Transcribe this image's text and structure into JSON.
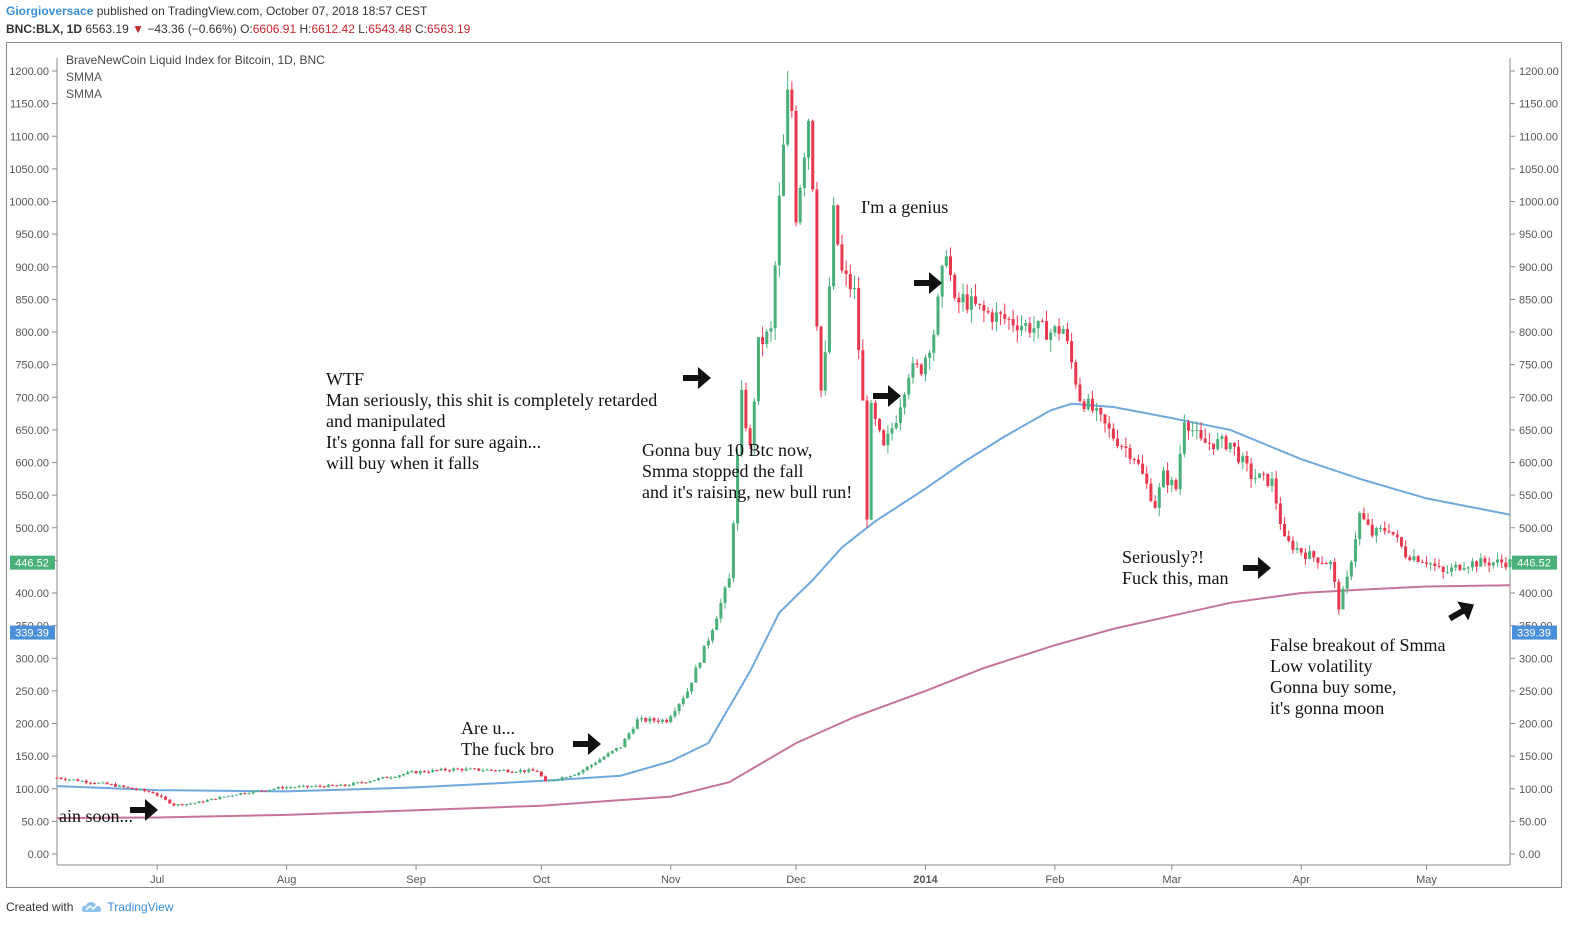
{
  "header": {
    "author": "Giorgioversace",
    "published": "published on TradingView.com, October 07, 2018 18:57 CEST",
    "symbol": "BNC:BLX, 1D",
    "last": "6563.19",
    "change_arrow": "▼",
    "change": "−43.36 (−0.66%)",
    "o_label": "O:",
    "o": "6606.91",
    "h_label": "H:",
    "h": "6612.42",
    "l_label": "L:",
    "l": "6543.48",
    "c_label": "C:",
    "c": "6563.19"
  },
  "legend": {
    "title": "BraveNewCoin Liquid Index for Bitcoin, 1D, BNC",
    "ind1": "SMMA",
    "ind2": "SMMA"
  },
  "footer": {
    "created": "Created with",
    "brand": "TradingView",
    "logo_icon": "tradingview-cloud-icon"
  },
  "colors": {
    "up": "#4ab07a",
    "down": "#e8384f",
    "smma_fast": "#6fa8dc",
    "smma_slow": "#c5739a",
    "price_tag": "#4ab07a",
    "smma_tag": "#4a90d9",
    "axis_text": "#555555"
  },
  "chart_data": {
    "type": "candlestick",
    "title": "BraveNewCoin Liquid Index for Bitcoin, 1D, BNC",
    "ylim": [
      0,
      1200
    ],
    "y_ticks": [
      "0.00",
      "50.00",
      "100.00",
      "150.00",
      "200.00",
      "250.00",
      "300.00",
      "350.00",
      "400.00",
      "450.00",
      "500.00",
      "550.00",
      "600.00",
      "650.00",
      "700.00",
      "750.00",
      "800.00",
      "850.00",
      "900.00",
      "950.00",
      "1000.00",
      "1050.00",
      "1100.00",
      "1150.00",
      "1200.00"
    ],
    "x_ticks": [
      {
        "label": "Jul",
        "date": "2013-07-01"
      },
      {
        "label": "Aug",
        "date": "2013-08-01"
      },
      {
        "label": "Sep",
        "date": "2013-09-01"
      },
      {
        "label": "Oct",
        "date": "2013-10-01"
      },
      {
        "label": "Nov",
        "date": "2013-11-01"
      },
      {
        "label": "Dec",
        "date": "2013-12-01"
      },
      {
        "label": "2014",
        "date": "2014-01-01"
      },
      {
        "label": "Feb",
        "date": "2014-02-01"
      },
      {
        "label": "Mar",
        "date": "2014-03-01"
      },
      {
        "label": "Apr",
        "date": "2014-04-01"
      },
      {
        "label": "May",
        "date": "2014-05-01"
      }
    ],
    "x_range": [
      "2013-06-07",
      "2014-05-21"
    ],
    "grid": false,
    "price_key_points": [
      [
        "2013-06-07",
        117
      ],
      [
        "2013-06-20",
        106
      ],
      [
        "2013-06-30",
        94
      ],
      [
        "2013-07-05",
        75
      ],
      [
        "2013-07-10",
        78
      ],
      [
        "2013-07-20",
        92
      ],
      [
        "2013-07-31",
        102
      ],
      [
        "2013-08-15",
        105
      ],
      [
        "2013-08-31",
        125
      ],
      [
        "2013-09-10",
        130
      ],
      [
        "2013-09-30",
        127
      ],
      [
        "2013-10-02",
        110
      ],
      [
        "2013-10-10",
        125
      ],
      [
        "2013-10-20",
        165
      ],
      [
        "2013-10-24",
        205
      ],
      [
        "2013-10-31",
        205
      ],
      [
        "2013-11-05",
        250
      ],
      [
        "2013-11-10",
        330
      ],
      [
        "2013-11-15",
        420
      ],
      [
        "2013-11-18",
        700
      ],
      [
        "2013-11-20",
        620
      ],
      [
        "2013-11-22",
        780
      ],
      [
        "2013-11-25",
        800
      ],
      [
        "2013-11-27",
        1000
      ],
      [
        "2013-11-29",
        1160
      ],
      [
        "2013-11-30",
        1140
      ],
      [
        "2013-12-01",
        980
      ],
      [
        "2013-12-03",
        1080
      ],
      [
        "2013-12-04",
        1130
      ],
      [
        "2013-12-05",
        1030
      ],
      [
        "2013-12-06",
        820
      ],
      [
        "2013-12-07",
        710
      ],
      [
        "2013-12-08",
        760
      ],
      [
        "2013-12-10",
        980
      ],
      [
        "2013-12-12",
        890
      ],
      [
        "2013-12-15",
        860
      ],
      [
        "2013-12-17",
        690
      ],
      [
        "2013-12-18",
        520
      ],
      [
        "2013-12-19",
        680
      ],
      [
        "2013-12-22",
        620
      ],
      [
        "2013-12-25",
        670
      ],
      [
        "2013-12-28",
        740
      ],
      [
        "2013-12-31",
        745
      ],
      [
        "2014-01-03",
        800
      ],
      [
        "2014-01-06",
        930
      ],
      [
        "2014-01-08",
        840
      ],
      [
        "2014-01-10",
        850
      ],
      [
        "2014-01-15",
        830
      ],
      [
        "2014-01-20",
        820
      ],
      [
        "2014-01-25",
        810
      ],
      [
        "2014-01-31",
        800
      ],
      [
        "2014-02-03",
        805
      ],
      [
        "2014-02-07",
        700
      ],
      [
        "2014-02-10",
        680
      ],
      [
        "2014-02-15",
        640
      ],
      [
        "2014-02-20",
        610
      ],
      [
        "2014-02-25",
        535
      ],
      [
        "2014-02-27",
        580
      ],
      [
        "2014-03-02",
        560
      ],
      [
        "2014-03-04",
        670
      ],
      [
        "2014-03-08",
        630
      ],
      [
        "2014-03-15",
        630
      ],
      [
        "2014-03-20",
        580
      ],
      [
        "2014-03-25",
        570
      ],
      [
        "2014-03-28",
        480
      ],
      [
        "2014-04-02",
        460
      ],
      [
        "2014-04-08",
        445
      ],
      [
        "2014-04-10",
        380
      ],
      [
        "2014-04-12",
        420
      ],
      [
        "2014-04-15",
        520
      ],
      [
        "2014-04-18",
        490
      ],
      [
        "2014-04-22",
        500
      ],
      [
        "2014-04-26",
        460
      ],
      [
        "2014-05-01",
        450
      ],
      [
        "2014-05-05",
        430
      ],
      [
        "2014-05-10",
        445
      ],
      [
        "2014-05-15",
        447
      ],
      [
        "2014-05-21",
        447
      ]
    ],
    "smma_fast": [
      [
        "2013-06-07",
        104
      ],
      [
        "2013-07-01",
        98
      ],
      [
        "2013-08-01",
        96
      ],
      [
        "2013-09-01",
        102
      ],
      [
        "2013-10-01",
        112
      ],
      [
        "2013-10-20",
        120
      ],
      [
        "2013-11-01",
        142
      ],
      [
        "2013-11-10",
        170
      ],
      [
        "2013-11-20",
        280
      ],
      [
        "2013-11-27",
        370
      ],
      [
        "2013-12-05",
        420
      ],
      [
        "2013-12-12",
        470
      ],
      [
        "2013-12-20",
        510
      ],
      [
        "2014-01-01",
        560
      ],
      [
        "2014-01-10",
        600
      ],
      [
        "2014-01-20",
        640
      ],
      [
        "2014-01-31",
        680
      ],
      [
        "2014-02-05",
        690
      ],
      [
        "2014-02-15",
        685
      ],
      [
        "2014-03-01",
        668
      ],
      [
        "2014-03-15",
        650
      ],
      [
        "2014-04-01",
        605
      ],
      [
        "2014-04-15",
        575
      ],
      [
        "2014-05-01",
        545
      ],
      [
        "2014-05-21",
        520
      ]
    ],
    "smma_slow": [
      [
        "2013-06-07",
        55
      ],
      [
        "2013-07-01",
        56
      ],
      [
        "2013-08-01",
        60
      ],
      [
        "2013-09-01",
        67
      ],
      [
        "2013-10-01",
        74
      ],
      [
        "2013-11-01",
        88
      ],
      [
        "2013-11-15",
        110
      ],
      [
        "2013-12-01",
        170
      ],
      [
        "2013-12-15",
        210
      ],
      [
        "2014-01-01",
        250
      ],
      [
        "2014-01-15",
        285
      ],
      [
        "2014-02-01",
        320
      ],
      [
        "2014-02-15",
        345
      ],
      [
        "2014-03-01",
        365
      ],
      [
        "2014-03-15",
        385
      ],
      [
        "2014-04-01",
        400
      ],
      [
        "2014-04-15",
        405
      ],
      [
        "2014-05-01",
        410
      ],
      [
        "2014-05-21",
        412
      ]
    ],
    "price_tag": "446.52",
    "smma_tag": "339.39"
  },
  "annotations": [
    {
      "id": "wtf",
      "lines": [
        "WTF",
        "Man seriously, this shit is completely retarded",
        "and manipulated"
      ]
    },
    {
      "id": "fall",
      "lines": [
        "It's gonna fall for sure again...",
        "will buy when it falls"
      ]
    },
    {
      "id": "buy10",
      "lines": [
        "Gonna buy 10 Btc now,",
        "Smma stopped the fall",
        "and it's raising, new bull run!"
      ]
    },
    {
      "id": "genius",
      "lines": [
        "I'm a genius"
      ]
    },
    {
      "id": "areu",
      "lines": [
        "Are u...",
        "The fuck bro"
      ]
    },
    {
      "id": "soon",
      "lines": [
        "ain soon..."
      ]
    },
    {
      "id": "seriously",
      "lines": [
        "Seriously?!",
        "Fuck this, man"
      ]
    },
    {
      "id": "false",
      "lines": [
        "False breakout of Smma",
        "Low volatility",
        "Gonna buy some,",
        "it's gonna moon"
      ]
    }
  ]
}
